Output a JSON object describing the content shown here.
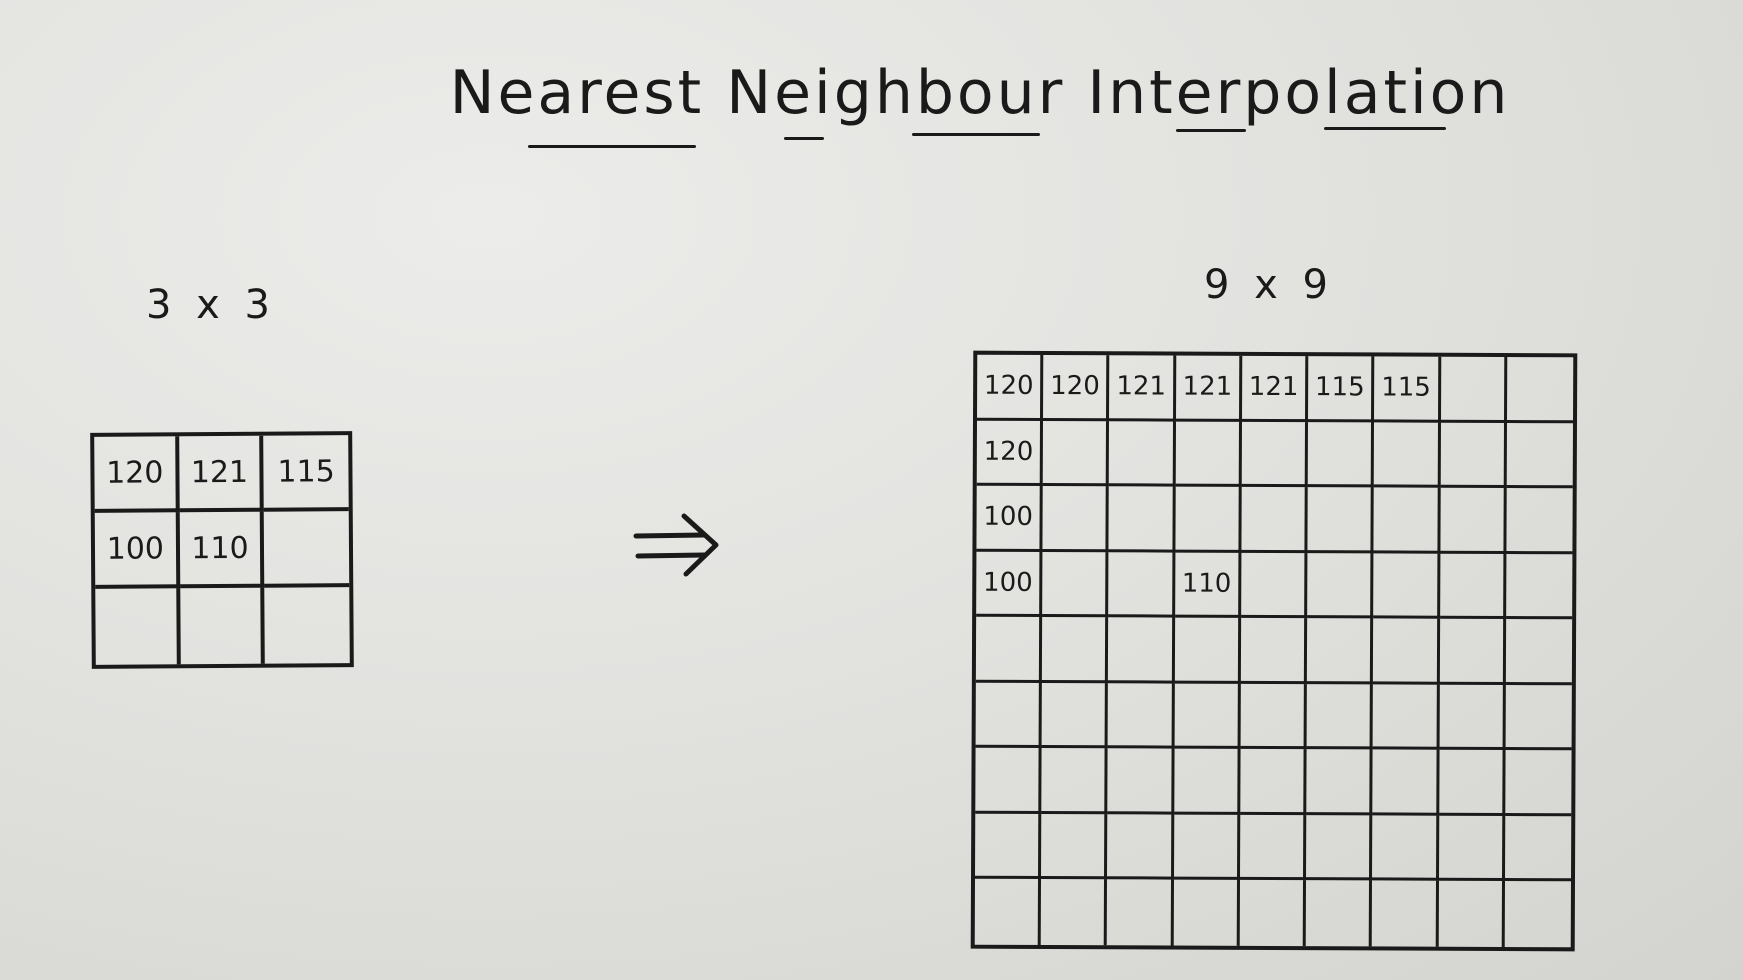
{
  "title": "Nearest Neighbour Interpolation",
  "source_grid": {
    "size_label": "3 x 3",
    "rows": [
      [
        "120",
        "121",
        "115"
      ],
      [
        "100",
        "110",
        ""
      ],
      [
        "",
        "",
        ""
      ]
    ]
  },
  "arrow_symbol": "⇒",
  "target_grid": {
    "size_label": "9 x 9",
    "rows": [
      [
        "120",
        "120",
        "121",
        "121",
        "121",
        "115",
        "115",
        "",
        ""
      ],
      [
        "120",
        "",
        "",
        "",
        "",
        "",
        "",
        "",
        ""
      ],
      [
        "100",
        "",
        "",
        "",
        "",
        "",
        "",
        "",
        ""
      ],
      [
        "100",
        "",
        "",
        "110",
        "",
        "",
        "",
        "",
        ""
      ],
      [
        "",
        "",
        "",
        "",
        "",
        "",
        "",
        "",
        ""
      ],
      [
        "",
        "",
        "",
        "",
        "",
        "",
        "",
        "",
        ""
      ],
      [
        "",
        "",
        "",
        "",
        "",
        "",
        "",
        "",
        ""
      ],
      [
        "",
        "",
        "",
        "",
        "",
        "",
        "",
        "",
        ""
      ],
      [
        "",
        "",
        "",
        "",
        "",
        "",
        "",
        "",
        ""
      ]
    ]
  },
  "ink_color": "#1a1a1a"
}
